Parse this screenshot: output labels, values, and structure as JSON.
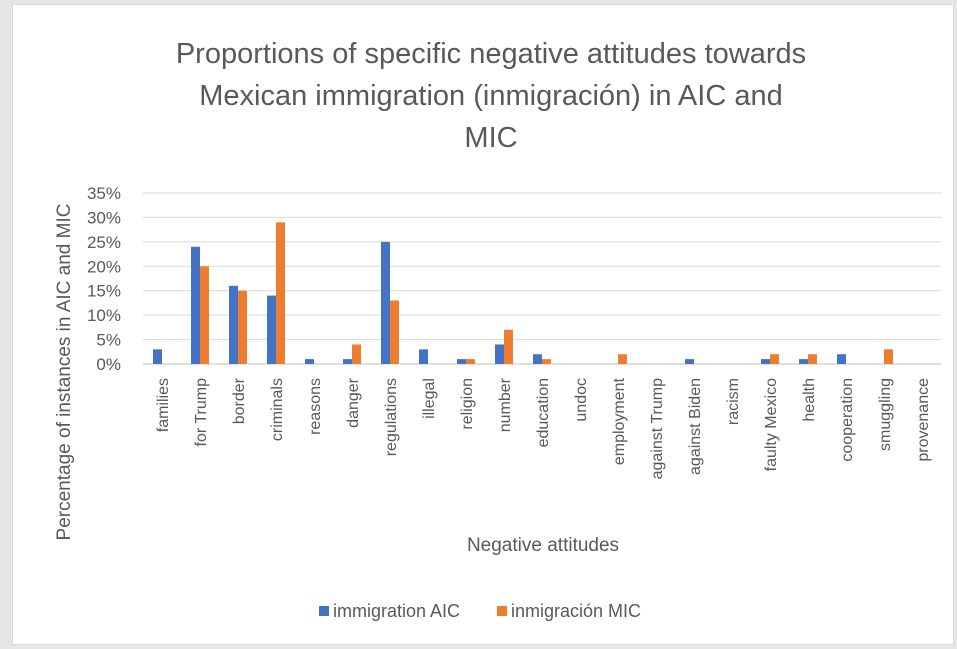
{
  "chart_data": {
    "type": "bar",
    "title": "Proportions of specific negative attitudes towards Mexican immigration (inmigración) in AIC and MIC",
    "title_lines": [
      "Proportions of specific negative attitudes towards",
      "Mexican immigration (inmigración) in AIC and",
      "MIC"
    ],
    "xlabel": "Negative attitudes",
    "ylabel": "Percentage of instances in AIC and MIC",
    "ylim": [
      0,
      35
    ],
    "yticks": [
      0,
      5,
      10,
      15,
      20,
      25,
      30,
      35
    ],
    "ytick_labels": [
      "0%",
      "5%",
      "10%",
      "15%",
      "20%",
      "25%",
      "30%",
      "35%"
    ],
    "grid": true,
    "legend_position": "bottom",
    "categories": [
      "families",
      "for Trump",
      "border",
      "criminals",
      "reasons",
      "danger",
      "regulations",
      "illegal",
      "religion",
      "number",
      "education",
      "undoc",
      "employment",
      "against Trump",
      "against Biden",
      "racism",
      "faulty Mexico",
      "health",
      "cooperation",
      "smuggling",
      "provenance"
    ],
    "series": [
      {
        "name": "immigration AIC",
        "color": "#4472c4",
        "values": [
          3,
          24,
          16,
          14,
          1,
          1,
          25,
          3,
          1,
          4,
          2,
          0,
          0,
          0,
          1,
          0,
          1,
          1,
          2,
          0,
          0
        ]
      },
      {
        "name": "inmigración MIC",
        "color": "#ed7d31",
        "values": [
          0,
          20,
          15,
          29,
          0,
          4,
          13,
          0,
          1,
          7,
          1,
          0,
          2,
          0,
          0,
          0,
          2,
          2,
          0,
          3,
          0
        ]
      }
    ]
  }
}
